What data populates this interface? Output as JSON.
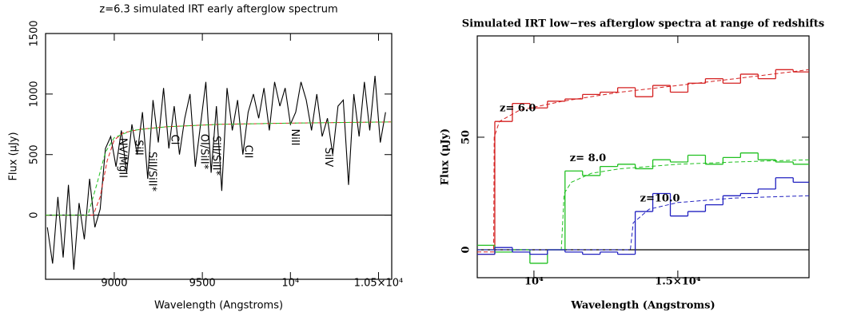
{
  "chart_data": [
    {
      "type": "line",
      "title": "z=6.3 simulated IRT early afterglow spectrum",
      "xlabel": "Wavelength (Angstroms)",
      "ylabel": "Flux (μJy)",
      "xlim": [
        8610,
        10575
      ],
      "ylim": [
        -530,
        1500
      ],
      "xticks": [
        9000,
        9500,
        {
          "value": 10000,
          "label": "10⁴"
        },
        {
          "value": 10500,
          "label": "1.05×10⁴"
        }
      ],
      "yticks": [
        0,
        500,
        1000,
        1500
      ],
      "zero_line": true,
      "series": [
        {
          "color": "#000000",
          "dashed": false,
          "x": [
            8620,
            8650,
            8680,
            8710,
            8740,
            8770,
            8800,
            8830,
            8860,
            8890,
            8920,
            8950,
            8980,
            9010,
            9040,
            9070,
            9100,
            9130,
            9160,
            9190,
            9220,
            9250,
            9280,
            9310,
            9340,
            9370,
            9400,
            9430,
            9460,
            9490,
            9520,
            9550,
            9580,
            9610,
            9640,
            9670,
            9700,
            9730,
            9760,
            9790,
            9820,
            9850,
            9880,
            9910,
            9940,
            9970,
            10000,
            10030,
            10060,
            10090,
            10120,
            10150,
            10180,
            10210,
            10240,
            10270,
            10300,
            10330,
            10360,
            10390,
            10420,
            10450,
            10480,
            10510,
            10540
          ],
          "values": [
            -100,
            -400,
            150,
            -350,
            250,
            -450,
            100,
            -200,
            300,
            -100,
            50,
            550,
            650,
            400,
            700,
            350,
            750,
            500,
            850,
            300,
            950,
            600,
            1050,
            550,
            900,
            500,
            800,
            1000,
            400,
            750,
            1100,
            350,
            900,
            200,
            1050,
            700,
            950,
            500,
            850,
            1000,
            800,
            1050,
            700,
            1100,
            900,
            1050,
            750,
            850,
            1100,
            950,
            700,
            1000,
            650,
            800,
            500,
            900,
            950,
            250,
            1000,
            650,
            1100,
            700,
            1150,
            600,
            850
          ]
        },
        {
          "color": "#e02020",
          "dashed": true,
          "x": [
            8610,
            8880,
            8920,
            8960,
            9000,
            9050,
            9150,
            9300,
            9600,
            10000,
            10575
          ],
          "values": [
            0,
            0,
            150,
            450,
            620,
            680,
            710,
            730,
            750,
            760,
            770
          ]
        },
        {
          "color": "#20c020",
          "dashed": true,
          "x": [
            8610,
            8850,
            8900,
            8950,
            9000,
            9100,
            9300,
            9600,
            10000,
            10575
          ],
          "values": [
            0,
            0,
            250,
            520,
            640,
            700,
            730,
            750,
            760,
            770
          ]
        }
      ],
      "annotations": [
        {
          "text": "NV/MgII",
          "x": 9045
        },
        {
          "text": "SiII",
          "x": 9136
        },
        {
          "text": "SiII/SiII*",
          "x": 9214
        },
        {
          "text": "CI",
          "x": 9341
        },
        {
          "text": "OI/SiII*",
          "x": 9509
        },
        {
          "text": "SiII/SiII*",
          "x": 9577
        },
        {
          "text": "CII",
          "x": 9759
        },
        {
          "text": "NiII",
          "x": 10023
        },
        {
          "text": "SiIV",
          "x": 10214
        }
      ]
    },
    {
      "type": "line",
      "title": "Simulated IRT low−res afterglow spectra at range of redshifts",
      "xlabel": "Wavelength (Angstroms)",
      "ylabel": "Flux (μJy)",
      "xlim": [
        8030,
        19560
      ],
      "ylim": [
        -12.4,
        95
      ],
      "xticks": [
        {
          "value": 10000,
          "label": "10⁴"
        },
        {
          "value": 15000,
          "label": "1.5×10⁴"
        }
      ],
      "yticks": [
        0,
        50
      ],
      "zero_line": true,
      "series": [
        {
          "name": "z= 6.0",
          "color": "#d42020",
          "step": true,
          "bins": [
            8030,
            8640,
            9250,
            9860,
            10470,
            11080,
            11690,
            12300,
            12910,
            13520,
            14130,
            14740,
            15350,
            15960,
            16570,
            17180,
            17790,
            18400,
            19010,
            19560
          ],
          "values": [
            -2,
            57,
            65,
            63,
            66,
            67,
            69,
            70,
            72,
            68,
            73,
            70,
            74,
            76,
            74,
            78,
            76,
            80,
            79
          ]
        },
        {
          "name": "z= 8.0",
          "color": "#20c020",
          "step": true,
          "bins": [
            8030,
            8640,
            9250,
            9860,
            10470,
            11080,
            11690,
            12300,
            12910,
            13520,
            14130,
            14740,
            15350,
            15960,
            16570,
            17180,
            17790,
            18400,
            19010,
            19560
          ],
          "values": [
            2,
            -1,
            0,
            -6,
            0,
            35,
            33,
            37,
            38,
            36,
            40,
            39,
            42,
            38,
            41,
            43,
            40,
            39,
            38
          ]
        },
        {
          "name": "z=10.0",
          "color": "#2020c0",
          "step": true,
          "bins": [
            8030,
            8640,
            9250,
            9860,
            10470,
            11080,
            11690,
            12300,
            12910,
            13520,
            14130,
            14740,
            15350,
            15960,
            16570,
            17180,
            17790,
            18400,
            19010,
            19560
          ],
          "values": [
            -2,
            1,
            -1,
            -2,
            0,
            -1,
            -2,
            -1,
            -2,
            17,
            25,
            15,
            17,
            20,
            24,
            25,
            27,
            32,
            30
          ]
        },
        {
          "color": "#d42020",
          "dashed": true,
          "x": [
            8030,
            8600,
            8620,
            8800,
            9500,
            11000,
            13000,
            15000,
            17000,
            19560
          ],
          "values": [
            -1,
            -1,
            50,
            57,
            62,
            66,
            70,
            73,
            76,
            80
          ]
        },
        {
          "color": "#20c020",
          "dashed": true,
          "x": [
            8030,
            10950,
            11050,
            11300,
            12000,
            13000,
            15000,
            17000,
            19560
          ],
          "values": [
            0,
            0,
            25,
            30,
            34,
            36,
            38,
            39,
            40
          ]
        },
        {
          "color": "#2020c0",
          "dashed": true,
          "x": [
            8030,
            13350,
            13450,
            14000,
            15000,
            17000,
            19560
          ],
          "values": [
            0,
            0,
            12,
            18,
            21,
            23,
            24
          ]
        }
      ]
    }
  ]
}
